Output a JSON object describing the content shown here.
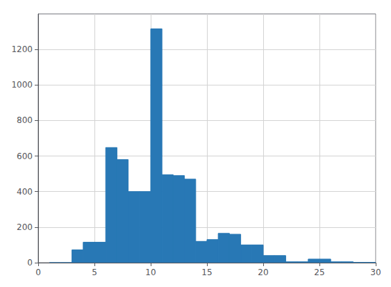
{
  "chart_data": {
    "type": "histogram",
    "bins": [
      1,
      2,
      3,
      4,
      5,
      6,
      7,
      8,
      9,
      10,
      11,
      12,
      13,
      14,
      15,
      16,
      17,
      18,
      19,
      20,
      21,
      22,
      23,
      24,
      25,
      26,
      27,
      28,
      29,
      30
    ],
    "values": [
      0,
      0,
      72,
      115,
      115,
      648,
      580,
      400,
      400,
      1316,
      495,
      490,
      470,
      120,
      130,
      165,
      160,
      100,
      100,
      40,
      40,
      5,
      5,
      20,
      20,
      5,
      5,
      2,
      2
    ],
    "color": "#2878b5",
    "xlim": [
      0,
      30
    ],
    "xticks": [
      0,
      5,
      10,
      15,
      20,
      25,
      30
    ],
    "ylim": [
      0,
      1400
    ],
    "yticks": [
      0,
      200,
      400,
      600,
      800,
      1000,
      1200
    ],
    "grid": true
  }
}
